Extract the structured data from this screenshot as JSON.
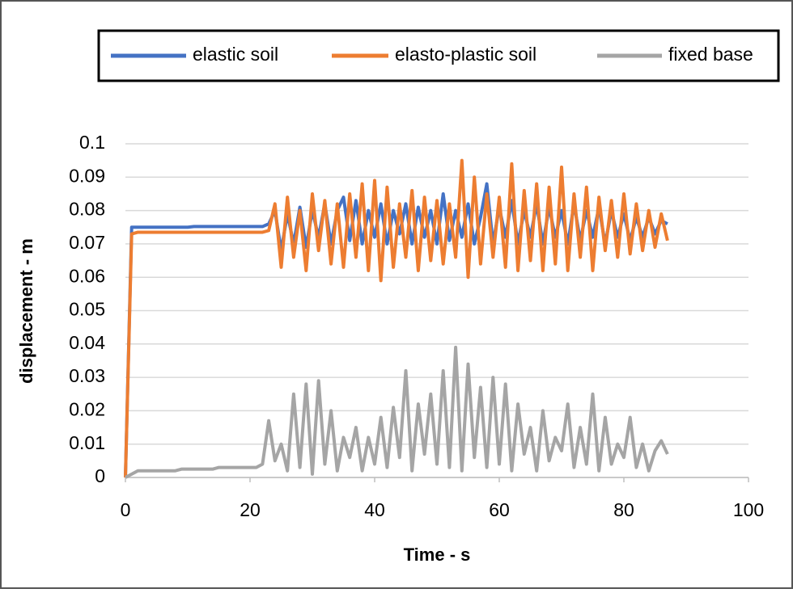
{
  "chart_data": {
    "type": "line",
    "x_label": "Time - s",
    "y_label": "displacement - m",
    "x": [
      0,
      1,
      2,
      3,
      4,
      5,
      6,
      7,
      8,
      9,
      10,
      11,
      12,
      13,
      14,
      15,
      16,
      17,
      18,
      19,
      20,
      21,
      22,
      23,
      24,
      25,
      26,
      27,
      28,
      29,
      30,
      31,
      32,
      33,
      34,
      35,
      36,
      37,
      38,
      39,
      40,
      41,
      42,
      43,
      44,
      45,
      46,
      47,
      48,
      49,
      50,
      51,
      52,
      53,
      54,
      55,
      56,
      57,
      58,
      59,
      60,
      61,
      62,
      63,
      64,
      65,
      66,
      67,
      68,
      69,
      70,
      71,
      72,
      73,
      74,
      75,
      76,
      77,
      78,
      79,
      80,
      81,
      82,
      83,
      84,
      85,
      86,
      87
    ],
    "series": [
      {
        "name": "elastic soil",
        "color": "#4472c4",
        "values": [
          0,
          0.075,
          0.075,
          0.075,
          0.075,
          0.075,
          0.075,
          0.075,
          0.075,
          0.075,
          0.075,
          0.0752,
          0.0752,
          0.0752,
          0.0752,
          0.0752,
          0.0752,
          0.0752,
          0.0752,
          0.0752,
          0.0752,
          0.0752,
          0.0752,
          0.076,
          0.08,
          0.068,
          0.079,
          0.07,
          0.081,
          0.069,
          0.08,
          0.072,
          0.082,
          0.07,
          0.08,
          0.084,
          0.071,
          0.083,
          0.07,
          0.08,
          0.072,
          0.082,
          0.07,
          0.08,
          0.073,
          0.082,
          0.07,
          0.081,
          0.072,
          0.08,
          0.07,
          0.085,
          0.071,
          0.08,
          0.072,
          0.082,
          0.07,
          0.078,
          0.088,
          0.07,
          0.081,
          0.072,
          0.083,
          0.07,
          0.08,
          0.072,
          0.082,
          0.07,
          0.081,
          0.072,
          0.08,
          0.07,
          0.082,
          0.071,
          0.08,
          0.072,
          0.081,
          0.07,
          0.08,
          0.072,
          0.079,
          0.071,
          0.078,
          0.072,
          0.078,
          0.073,
          0.077,
          0.076
        ]
      },
      {
        "name": "elasto-plastic soil",
        "color": "#ed7d31",
        "values": [
          0,
          0.073,
          0.0735,
          0.0735,
          0.0735,
          0.0735,
          0.0735,
          0.0735,
          0.0735,
          0.0735,
          0.0735,
          0.0735,
          0.0735,
          0.0735,
          0.0735,
          0.0735,
          0.0735,
          0.0735,
          0.0735,
          0.0735,
          0.0735,
          0.0735,
          0.0735,
          0.074,
          0.082,
          0.063,
          0.084,
          0.066,
          0.08,
          0.062,
          0.085,
          0.068,
          0.083,
          0.064,
          0.082,
          0.063,
          0.085,
          0.066,
          0.088,
          0.062,
          0.089,
          0.059,
          0.087,
          0.063,
          0.082,
          0.066,
          0.086,
          0.062,
          0.084,
          0.065,
          0.083,
          0.064,
          0.082,
          0.066,
          0.095,
          0.06,
          0.09,
          0.064,
          0.085,
          0.066,
          0.084,
          0.063,
          0.094,
          0.062,
          0.086,
          0.065,
          0.088,
          0.062,
          0.087,
          0.064,
          0.093,
          0.062,
          0.085,
          0.066,
          0.087,
          0.062,
          0.084,
          0.068,
          0.083,
          0.066,
          0.085,
          0.067,
          0.082,
          0.068,
          0.08,
          0.069,
          0.079,
          0.071
        ]
      },
      {
        "name": "fixed base",
        "color": "#a5a5a5",
        "values": [
          0,
          0.001,
          0.002,
          0.002,
          0.002,
          0.002,
          0.002,
          0.002,
          0.002,
          0.0025,
          0.0025,
          0.0025,
          0.0025,
          0.0025,
          0.0025,
          0.003,
          0.003,
          0.003,
          0.003,
          0.003,
          0.003,
          0.003,
          0.004,
          0.017,
          0.005,
          0.01,
          0.002,
          0.025,
          0.003,
          0.028,
          0.001,
          0.029,
          0.004,
          0.02,
          0.002,
          0.012,
          0.006,
          0.015,
          0.002,
          0.012,
          0.004,
          0.018,
          0.003,
          0.021,
          0.006,
          0.032,
          0.002,
          0.022,
          0.007,
          0.025,
          0.004,
          0.032,
          0.003,
          0.039,
          0.002,
          0.034,
          0.006,
          0.027,
          0.003,
          0.03,
          0.004,
          0.028,
          0.002,
          0.022,
          0.007,
          0.015,
          0.002,
          0.02,
          0.005,
          0.012,
          0.008,
          0.022,
          0.003,
          0.015,
          0.004,
          0.025,
          0.002,
          0.018,
          0.004,
          0.01,
          0.006,
          0.018,
          0.003,
          0.01,
          0.002,
          0.008,
          0.011,
          0.007
        ]
      }
    ],
    "xlim": [
      0,
      100
    ],
    "xticks": [
      0,
      20,
      40,
      60,
      80,
      100
    ],
    "ylim": [
      0,
      0.1
    ],
    "yticks": [
      0,
      0.01,
      0.02,
      0.03,
      0.04,
      0.05,
      0.06,
      0.07,
      0.08,
      0.09,
      0.1
    ],
    "grid": true,
    "legend": "top"
  }
}
